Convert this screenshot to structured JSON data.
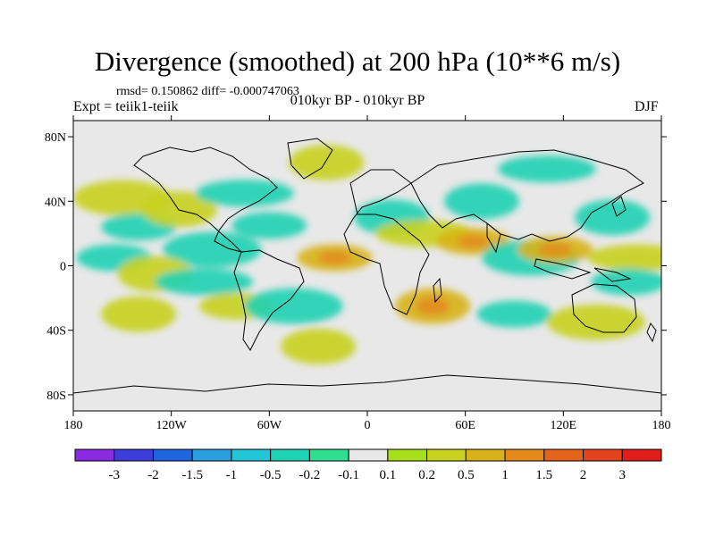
{
  "title": "Divergence (smoothed) at 200 hPa (10**6 m/s)",
  "stats_line": "rmsd= 0.150862 diff= -0.000747063",
  "left_label": "Expt = teiik1-teiik",
  "center_label": "010kyr BP - 010kyr BP",
  "right_label": "DJF",
  "chart_data": {
    "type": "heatmap",
    "title": "Divergence (smoothed) at 200 hPa (10**6 m/s)",
    "x_axis": {
      "range": [
        -180,
        180
      ],
      "ticks": [
        -180,
        -120,
        -60,
        0,
        60,
        120,
        180
      ],
      "tick_labels": [
        "180",
        "120W",
        "60W",
        "0",
        "60E",
        "120E",
        "180"
      ]
    },
    "y_axis": {
      "range": [
        -90,
        90
      ],
      "ticks": [
        80,
        40,
        0,
        -40,
        -80
      ],
      "tick_labels": [
        "80N",
        "40N",
        "0",
        "40S",
        "80S"
      ]
    },
    "colorbar": {
      "labels": [
        "-3",
        "-2",
        "-1.5",
        "-1",
        "-0.5",
        "-0.2",
        "-0.1",
        "0.1",
        "0.2",
        "0.5",
        "1",
        "1.5",
        "2",
        "3"
      ],
      "colors": [
        "#8a2be2",
        "#3d3dd9",
        "#1e64dc",
        "#2a9fe0",
        "#23c6d6",
        "#20d2b4",
        "#2fdf8f",
        "#e8e8e8",
        "#a7e01a",
        "#c8d21f",
        "#d8b21a",
        "#e48a1c",
        "#e5641c",
        "#e2421c",
        "#e01f1c"
      ]
    },
    "contour_patches": [
      {
        "lon": -150,
        "lat": 42,
        "level": 0.2
      },
      {
        "lon": -140,
        "lat": 24,
        "level": -0.2
      },
      {
        "lon": -115,
        "lat": 35,
        "level": 0.2
      },
      {
        "lon": -75,
        "lat": 45,
        "level": -0.2
      },
      {
        "lon": -25,
        "lat": 64,
        "level": 0.2
      },
      {
        "lon": -60,
        "lat": 25,
        "level": -0.2
      },
      {
        "lon": -95,
        "lat": 10,
        "level": -0.2
      },
      {
        "lon": -155,
        "lat": 5,
        "level": -0.2
      },
      {
        "lon": -130,
        "lat": -5,
        "level": 0.2
      },
      {
        "lon": -100,
        "lat": -10,
        "level": -0.2
      },
      {
        "lon": -140,
        "lat": -30,
        "level": 0.2
      },
      {
        "lon": -80,
        "lat": -25,
        "level": 0.2
      },
      {
        "lon": -45,
        "lat": -25,
        "level": -0.2
      },
      {
        "lon": -20,
        "lat": 5,
        "level": 0.5
      },
      {
        "lon": 15,
        "lat": 30,
        "level": -0.2
      },
      {
        "lon": 35,
        "lat": 20,
        "level": 0.2
      },
      {
        "lon": 70,
        "lat": 40,
        "level": -0.2
      },
      {
        "lon": 65,
        "lat": 15,
        "level": 0.5
      },
      {
        "lon": 100,
        "lat": 5,
        "level": -0.2
      },
      {
        "lon": 115,
        "lat": 10,
        "level": 0.5
      },
      {
        "lon": 150,
        "lat": 30,
        "level": -0.2
      },
      {
        "lon": 165,
        "lat": 5,
        "level": 0.2
      },
      {
        "lon": 40,
        "lat": -25,
        "level": 0.5
      },
      {
        "lon": 90,
        "lat": -30,
        "level": -0.2
      },
      {
        "lon": 140,
        "lat": -35,
        "level": 0.2
      },
      {
        "lon": 160,
        "lat": -10,
        "level": -0.2
      },
      {
        "lon": -30,
        "lat": -50,
        "level": 0.2
      },
      {
        "lon": 110,
        "lat": 60,
        "level": -0.2
      }
    ]
  }
}
